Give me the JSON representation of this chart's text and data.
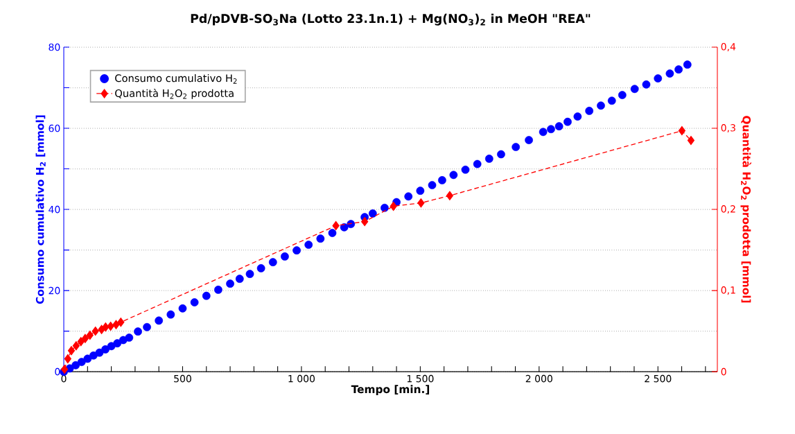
{
  "chart_data": {
    "type": "scatter",
    "title": "Pd/pDVB-SO$_{3}$Na (Lotto 23.1n.1) + Mg(NO$_{3}$)$_{2}$ in MeOH \"REA\"",
    "xlabel": "Tempo [min.]",
    "ylabel": "Consumo cumulativo H$_{2}$ [mmol]",
    "y2label": "Quantità H$_{2}$O$_{2}$ prodotta [mmol]",
    "xlim": [
      0,
      2750
    ],
    "xticks": [
      0,
      {
        "value": 100,
        "label": null
      },
      {
        "value": 200,
        "label": null
      },
      {
        "value": 300,
        "label": null
      },
      {
        "value": 400,
        "label": null
      },
      500,
      {
        "value": 600,
        "label": null
      },
      {
        "value": 700,
        "label": null
      },
      {
        "value": 800,
        "label": null
      },
      {
        "value": 900,
        "label": null
      },
      {
        "value": 1000,
        "label": "1 000"
      },
      {
        "value": 1100,
        "label": null
      },
      {
        "value": 1200,
        "label": null
      },
      {
        "value": 1300,
        "label": null
      },
      {
        "value": 1400,
        "label": null
      },
      {
        "value": 1500,
        "label": "1 500"
      },
      {
        "value": 1600,
        "label": null
      },
      {
        "value": 1700,
        "label": null
      },
      {
        "value": 1800,
        "label": null
      },
      {
        "value": 1900,
        "label": null
      },
      {
        "value": 2000,
        "label": "2 000"
      },
      {
        "value": 2100,
        "label": null
      },
      {
        "value": 2200,
        "label": null
      },
      {
        "value": 2300,
        "label": null
      },
      {
        "value": 2400,
        "label": null
      },
      {
        "value": 2500,
        "label": "2 500"
      },
      {
        "value": 2600,
        "label": null
      },
      {
        "value": 2700,
        "label": null
      }
    ],
    "ylim": [
      0,
      80
    ],
    "yticks": [
      0,
      {
        "value": 10,
        "label": null
      },
      20,
      {
        "value": 30,
        "label": null
      },
      40,
      {
        "value": 50,
        "label": null
      },
      60,
      {
        "value": 70,
        "label": null
      },
      80
    ],
    "y2lim": [
      0,
      0.4
    ],
    "y2ticks": [
      0,
      {
        "value": 0.1,
        "label": "0,1"
      },
      {
        "value": 0.2,
        "label": "0,2"
      },
      {
        "value": 0.3,
        "label": "0,3"
      },
      {
        "value": 0.4,
        "label": "0,4"
      }
    ],
    "grid": "y",
    "legend": "top left",
    "series": [
      {
        "name": "Consumo cumulativo H$_{2}$",
        "color": "#0000ff",
        "marker": "circle",
        "x": [
          0,
          25,
          50,
          75,
          100,
          125,
          150,
          175,
          200,
          225,
          250,
          275,
          312,
          350,
          400,
          450,
          500,
          550,
          600,
          650,
          700,
          740,
          783,
          830,
          880,
          930,
          980,
          1030,
          1080,
          1130,
          1180,
          1208,
          1266,
          1300,
          1350,
          1400,
          1450,
          1500,
          1550,
          1592,
          1640,
          1690,
          1740,
          1790,
          1840,
          1902,
          1957,
          2017,
          2050,
          2084,
          2120,
          2162,
          2211,
          2260,
          2306,
          2350,
          2402,
          2451,
          2500,
          2550,
          2587,
          2624
        ],
        "values": [
          0,
          0.8,
          1.6,
          2.4,
          3.2,
          4.0,
          4.7,
          5.5,
          6.3,
          7.0,
          7.8,
          8.4,
          9.9,
          11.0,
          12.6,
          14.1,
          15.6,
          17.1,
          18.7,
          20.2,
          21.7,
          22.9,
          24.1,
          25.5,
          27.0,
          28.4,
          29.9,
          31.3,
          32.8,
          34.2,
          35.6,
          36.4,
          38.1,
          39.0,
          40.4,
          41.8,
          43.2,
          44.6,
          46.0,
          47.2,
          48.5,
          49.8,
          51.2,
          52.5,
          53.6,
          55.4,
          57.1,
          59.1,
          59.8,
          60.5,
          61.6,
          62.9,
          64.3,
          65.6,
          66.8,
          68.2,
          69.7,
          70.8,
          72.3,
          73.5,
          74.5,
          75.7
        ]
      },
      {
        "name": "Quantità H$_{2}$O$_{2}$ prodotta",
        "type": "line",
        "axis": "y2",
        "color": "#ff0000",
        "marker": "diamond",
        "line_style": "dashed",
        "x": [
          3,
          17,
          32,
          52,
          72,
          90,
          110,
          133,
          159,
          176,
          197,
          220,
          240,
          1145,
          1266,
          1387,
          1503,
          1624,
          2601,
          2639
        ],
        "values": [
          0.003,
          0.016,
          0.026,
          0.032,
          0.037,
          0.041,
          0.045,
          0.05,
          0.052,
          0.055,
          0.056,
          0.058,
          0.061,
          0.18,
          0.185,
          0.204,
          0.208,
          0.217,
          0.297,
          0.285
        ]
      }
    ]
  }
}
